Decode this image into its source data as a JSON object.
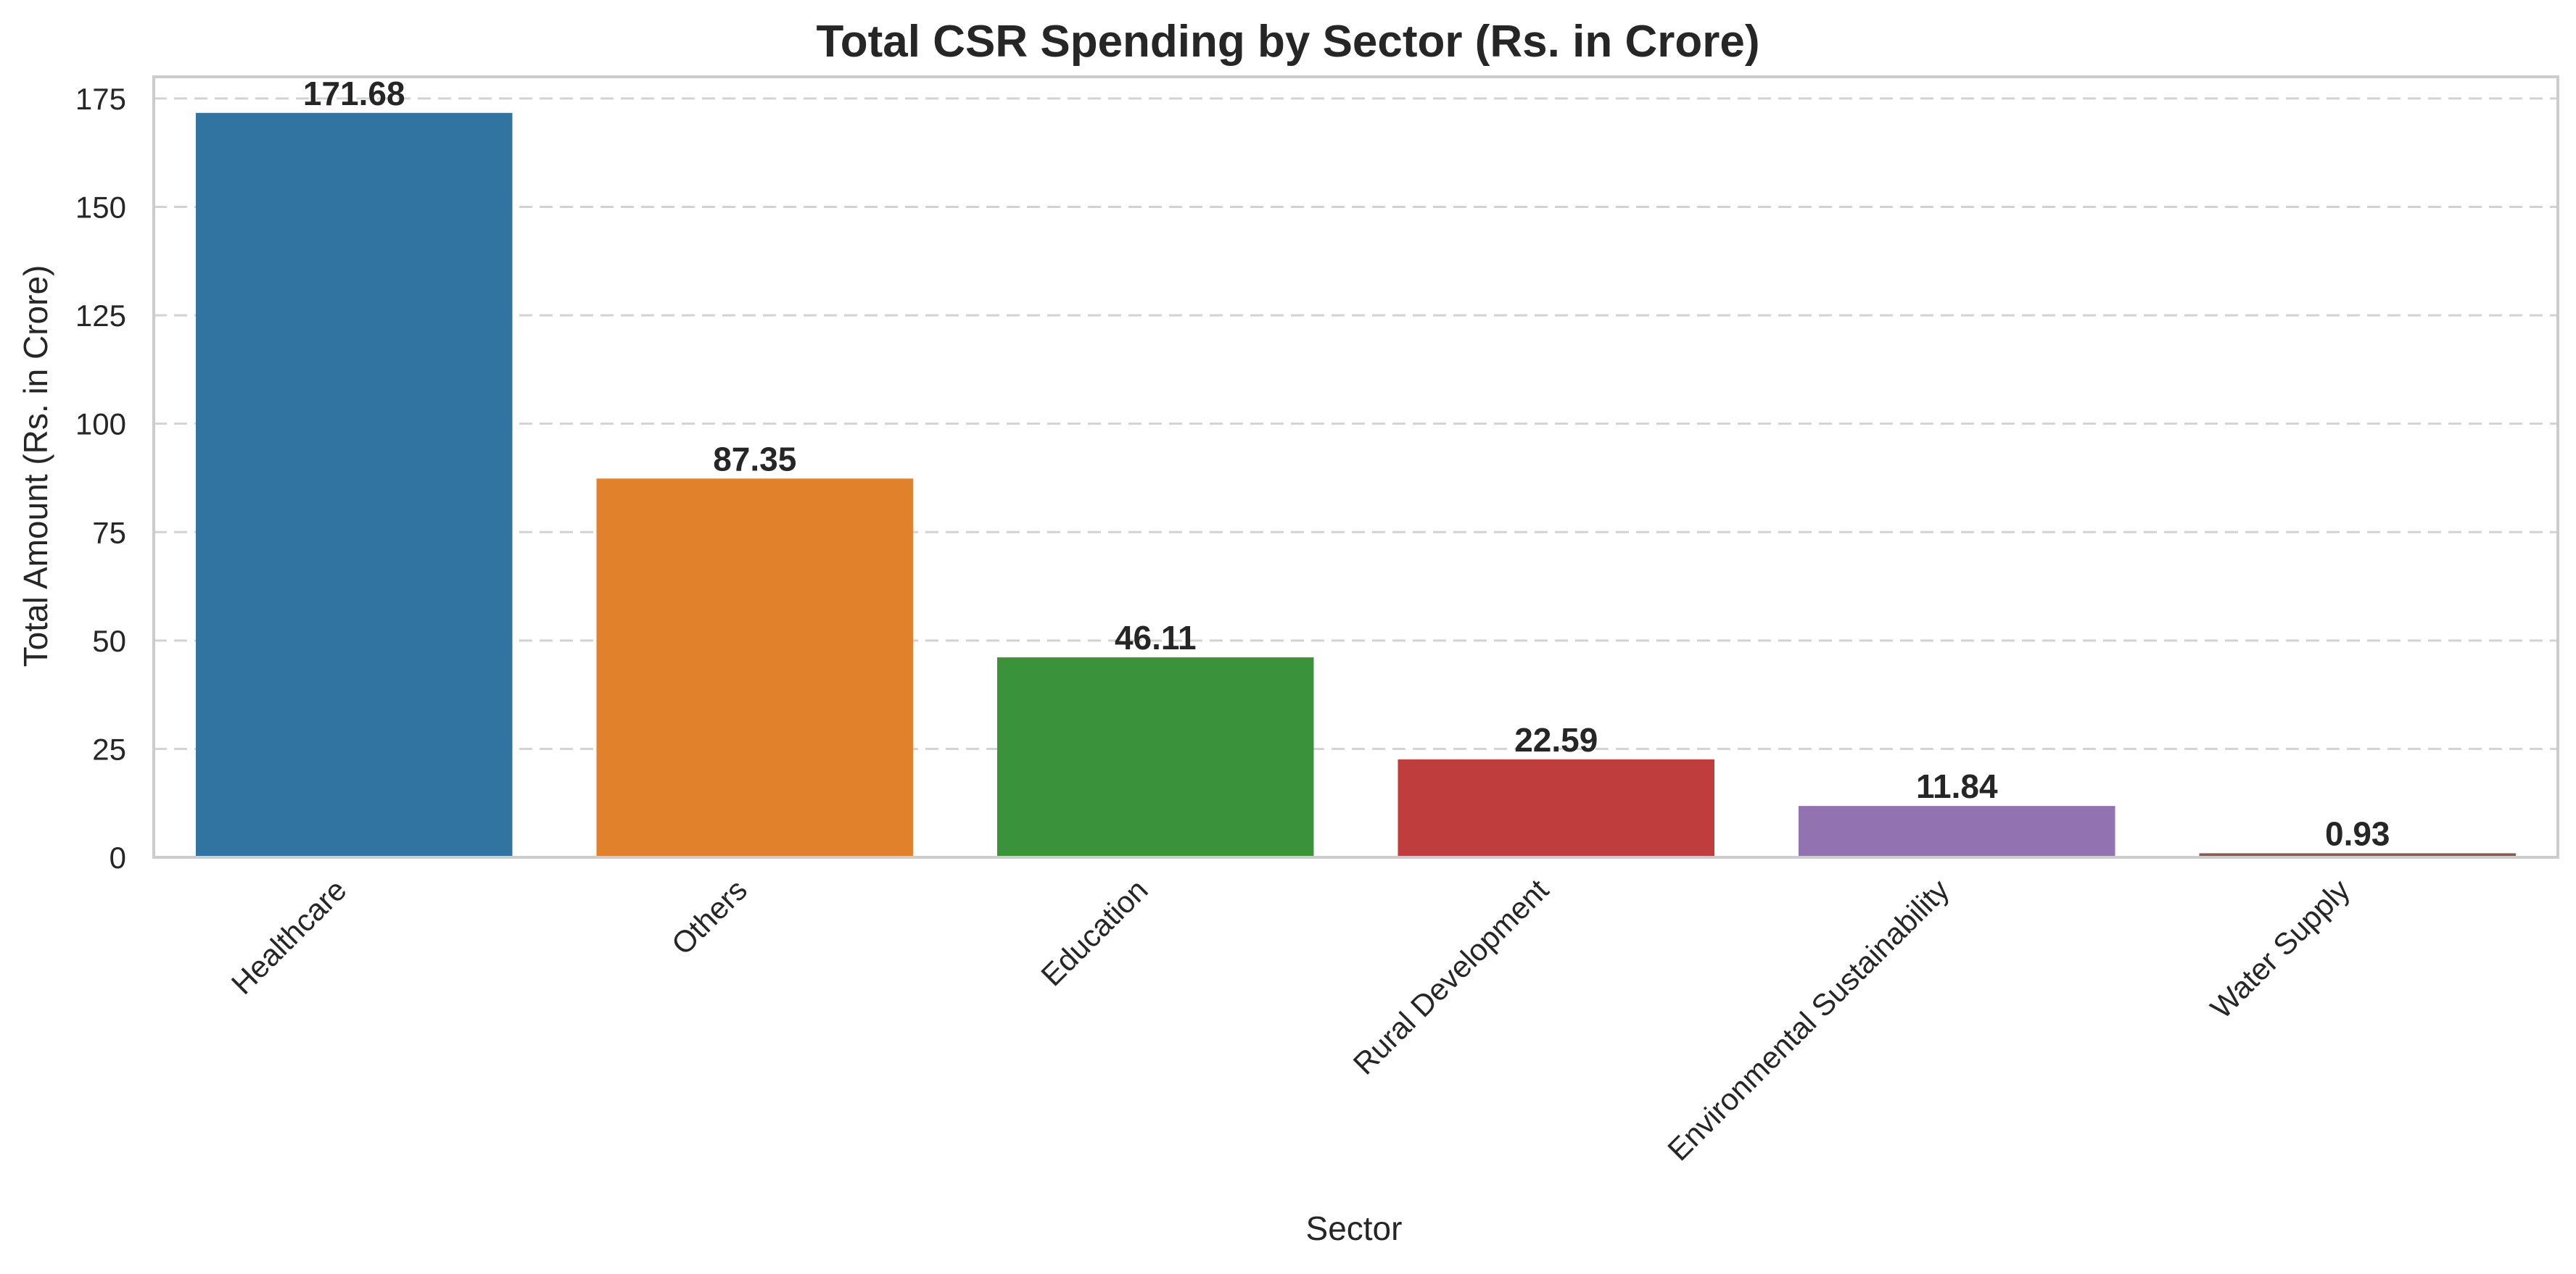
{
  "chart_data": {
    "type": "bar",
    "title": "Total CSR Spending by Sector (Rs. in Crore)",
    "xlabel": "Sector",
    "ylabel": "Total Amount (Rs. in Crore)",
    "categories": [
      "Healthcare",
      "Others",
      "Education",
      "Rural Development",
      "Environmental Sustainability",
      "Water Supply"
    ],
    "values": [
      171.68,
      87.35,
      46.11,
      22.59,
      11.84,
      0.93
    ],
    "value_labels": [
      "171.68",
      "87.35",
      "46.11",
      "22.59",
      "11.84",
      "0.93"
    ],
    "colors": [
      "#3274a1",
      "#e1812c",
      "#3a923a",
      "#c03d3e",
      "#9372b2",
      "#845b53"
    ],
    "ylim": [
      0,
      180
    ],
    "yticks": [
      0,
      25,
      50,
      75,
      100,
      125,
      150,
      175
    ],
    "grid": "horizontal dashed",
    "legend": "none"
  }
}
